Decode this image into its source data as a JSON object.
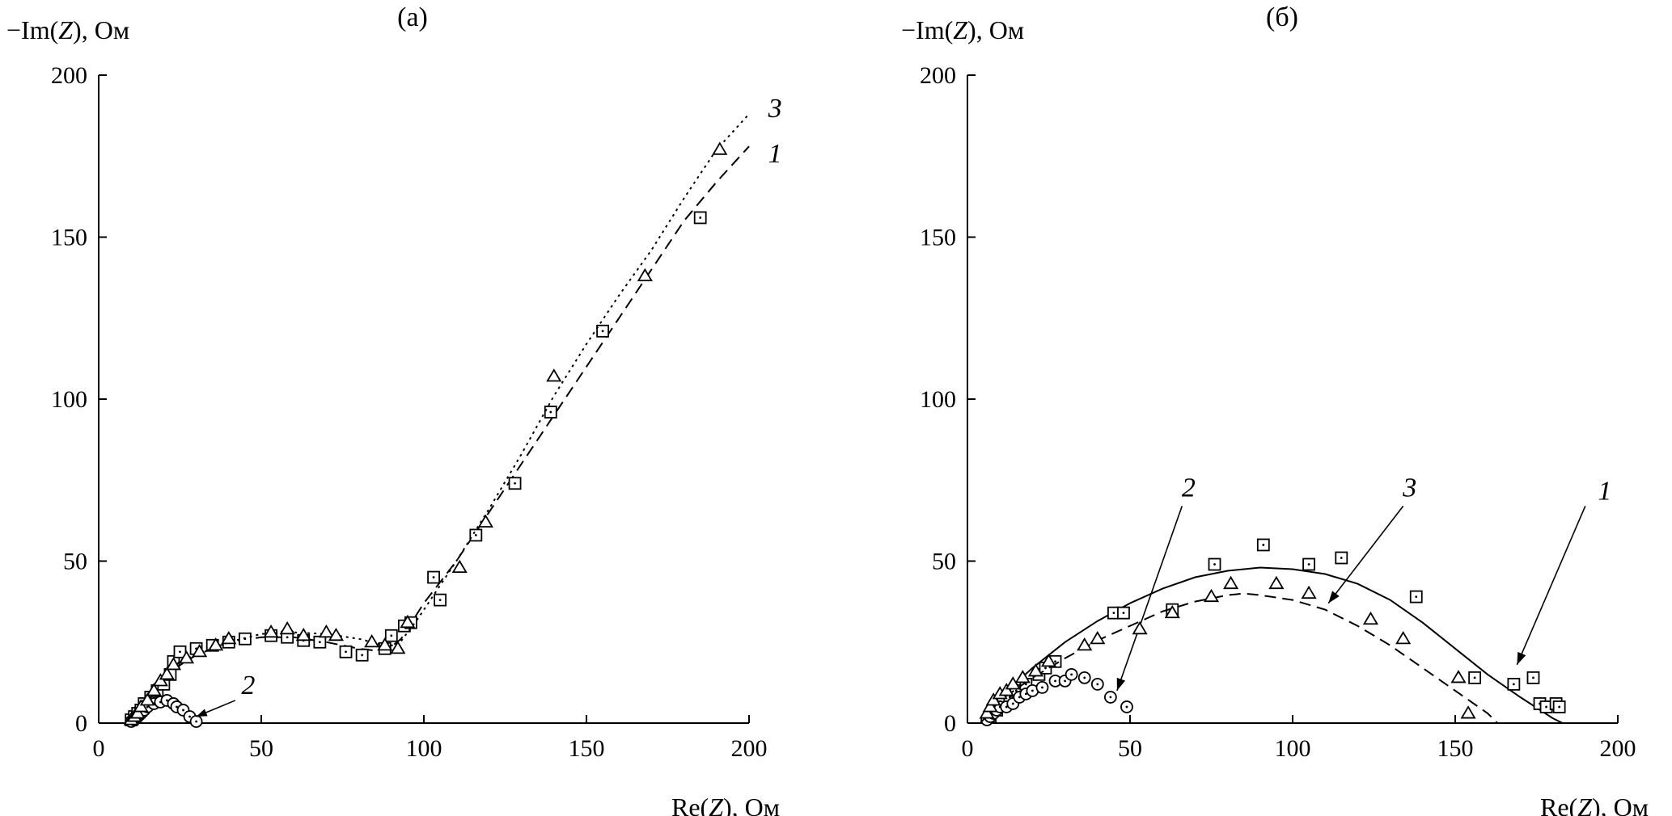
{
  "chart_data": [
    {
      "type": "scatter",
      "panel_label": "(а)",
      "ylabel": "−Im(Z), Ом",
      "xlabel": "Re(Z), Ом",
      "xlim": [
        0,
        200
      ],
      "ylim": [
        0,
        200
      ],
      "xticks": [
        "0",
        "50",
        "100",
        "150",
        "200"
      ],
      "yticks": [
        "0",
        "50",
        "100",
        "150",
        "200"
      ],
      "grid": false,
      "series": [
        {
          "name": "1",
          "marker": "square",
          "line": "dashed",
          "points": [
            [
              10,
              1
            ],
            [
              11,
              2
            ],
            [
              12,
              3
            ],
            [
              13,
              4
            ],
            [
              14,
              6
            ],
            [
              16,
              8
            ],
            [
              18,
              10
            ],
            [
              20,
              12
            ],
            [
              22,
              15
            ],
            [
              23,
              19
            ],
            [
              25,
              22
            ],
            [
              30,
              23
            ],
            [
              35,
              24
            ],
            [
              40,
              25
            ],
            [
              45,
              26
            ],
            [
              53,
              27
            ],
            [
              58,
              26.5
            ],
            [
              63,
              25.5
            ],
            [
              68,
              25
            ],
            [
              76,
              22
            ],
            [
              81,
              21
            ],
            [
              88,
              23
            ],
            [
              90,
              27
            ],
            [
              94,
              30
            ],
            [
              96,
              31
            ],
            [
              103,
              45
            ],
            [
              105,
              38
            ],
            [
              116,
              58
            ],
            [
              128,
              74
            ],
            [
              139,
              96
            ],
            [
              155,
              121
            ],
            [
              185,
              156
            ]
          ],
          "curve": [
            [
              9,
              0
            ],
            [
              12,
              5
            ],
            [
              16,
              10
            ],
            [
              22,
              16
            ],
            [
              30,
              21
            ],
            [
              40,
              25
            ],
            [
              50,
              26.5
            ],
            [
              60,
              26.5
            ],
            [
              70,
              25
            ],
            [
              80,
              23
            ],
            [
              88,
              22
            ],
            [
              93,
              26
            ],
            [
              100,
              37
            ],
            [
              110,
              50
            ],
            [
              120,
              65
            ],
            [
              130,
              80
            ],
            [
              140,
              95
            ],
            [
              150,
              110
            ],
            [
              160,
              125
            ],
            [
              170,
              140
            ],
            [
              180,
              155
            ],
            [
              190,
              167
            ],
            [
              200,
              178
            ]
          ],
          "label_position": [
            208,
            176
          ]
        },
        {
          "name": "2",
          "marker": "circle",
          "points": [
            [
              10,
              0.5
            ],
            [
              11,
              1
            ],
            [
              12,
              2
            ],
            [
              13,
              3
            ],
            [
              14,
              4
            ],
            [
              15,
              5
            ],
            [
              17,
              6
            ],
            [
              19,
              6.5
            ],
            [
              21,
              7
            ],
            [
              23,
              6
            ],
            [
              24,
              5
            ],
            [
              26,
              4
            ],
            [
              28,
              2
            ],
            [
              30,
              0.5
            ]
          ],
          "label_position": [
            46,
            12
          ]
        },
        {
          "name": "3",
          "marker": "triangle",
          "line": "dotted",
          "points": [
            [
              10,
              1
            ],
            [
              11,
              2
            ],
            [
              12,
              3
            ],
            [
              13,
              5
            ],
            [
              15,
              7
            ],
            [
              17,
              10
            ],
            [
              19,
              13
            ],
            [
              21,
              15
            ],
            [
              23,
              18
            ],
            [
              27,
              20
            ],
            [
              31,
              22
            ],
            [
              36,
              24
            ],
            [
              40,
              26
            ],
            [
              53,
              28
            ],
            [
              58,
              29
            ],
            [
              63,
              27
            ],
            [
              70,
              28
            ],
            [
              73,
              27
            ],
            [
              84,
              25
            ],
            [
              88,
              24
            ],
            [
              92,
              23
            ],
            [
              95,
              31
            ],
            [
              111,
              48
            ],
            [
              119,
              62
            ],
            [
              140,
              107
            ],
            [
              168,
              138
            ],
            [
              191,
              177
            ]
          ],
          "curve": [
            [
              9,
              0
            ],
            [
              13,
              6
            ],
            [
              18,
              13
            ],
            [
              25,
              19
            ],
            [
              32,
              22
            ],
            [
              40,
              25
            ],
            [
              50,
              27.5
            ],
            [
              60,
              28
            ],
            [
              70,
              27.5
            ],
            [
              80,
              26
            ],
            [
              88,
              24
            ],
            [
              92,
              24
            ],
            [
              98,
              32
            ],
            [
              110,
              50
            ],
            [
              120,
              66
            ],
            [
              130,
              83
            ],
            [
              140,
              101
            ],
            [
              150,
              117
            ],
            [
              160,
              132
            ],
            [
              170,
              146
            ],
            [
              180,
              162
            ],
            [
              190,
              177
            ],
            [
              200,
              188
            ]
          ],
          "label_position": [
            208,
            190
          ]
        }
      ]
    },
    {
      "type": "scatter",
      "panel_label": "(б)",
      "ylabel": "−Im(Z), Ом",
      "xlabel": "Re(Z), Ом",
      "xlim": [
        0,
        200
      ],
      "ylim": [
        0,
        200
      ],
      "xticks": [
        "0",
        "50",
        "100",
        "150",
        "200"
      ],
      "yticks": [
        "0",
        "50",
        "100",
        "150",
        "200"
      ],
      "grid": false,
      "series": [
        {
          "name": "1",
          "marker": "square",
          "line": "solid",
          "points": [
            [
              7,
              2
            ],
            [
              9,
              4
            ],
            [
              11,
              6
            ],
            [
              13,
              8
            ],
            [
              15,
              10
            ],
            [
              18,
              12
            ],
            [
              22,
              15
            ],
            [
              24,
              17
            ],
            [
              27,
              19
            ],
            [
              45,
              34
            ],
            [
              48,
              34
            ],
            [
              63,
              35
            ],
            [
              76,
              49
            ],
            [
              91,
              55
            ],
            [
              105,
              49
            ],
            [
              115,
              51
            ],
            [
              138,
              39
            ],
            [
              156,
              14
            ],
            [
              168,
              12
            ],
            [
              174,
              14
            ],
            [
              176,
              6
            ],
            [
              178,
              5
            ],
            [
              181,
              6
            ],
            [
              182,
              5
            ]
          ],
          "curve": [
            [
              4,
              0
            ],
            [
              10,
              8
            ],
            [
              20,
              17
            ],
            [
              30,
              25
            ],
            [
              40,
              31.5
            ],
            [
              50,
              37
            ],
            [
              60,
              41.5
            ],
            [
              70,
              45
            ],
            [
              80,
              47
            ],
            [
              90,
              48
            ],
            [
              100,
              47.5
            ],
            [
              110,
              46
            ],
            [
              120,
              43
            ],
            [
              130,
              38
            ],
            [
              140,
              31
            ],
            [
              150,
              23
            ],
            [
              160,
              15
            ],
            [
              170,
              8
            ],
            [
              180,
              1.5
            ],
            [
              183,
              0
            ]
          ],
          "label_position": [
            196,
            72
          ],
          "arrow": {
            "from": [
              190,
              67
            ],
            "to": [
              169,
              18
            ]
          }
        },
        {
          "name": "2",
          "marker": "circle",
          "points": [
            [
              6,
              1
            ],
            [
              7,
              2
            ],
            [
              8,
              3
            ],
            [
              9,
              4
            ],
            [
              10,
              5
            ],
            [
              12,
              5
            ],
            [
              14,
              6
            ],
            [
              16,
              8
            ],
            [
              18,
              9
            ],
            [
              20,
              10
            ],
            [
              23,
              11
            ],
            [
              27,
              13
            ],
            [
              30,
              13
            ],
            [
              32,
              15
            ],
            [
              36,
              14
            ],
            [
              40,
              12
            ],
            [
              44,
              8
            ],
            [
              49,
              5
            ]
          ],
          "label_position": [
            68,
            73
          ],
          "arrow": {
            "from": [
              66,
              67
            ],
            "to": [
              46,
              10
            ]
          }
        },
        {
          "name": "3",
          "marker": "triangle",
          "line": "dashed",
          "points": [
            [
              6,
              3
            ],
            [
              7,
              5
            ],
            [
              8,
              7
            ],
            [
              10,
              9
            ],
            [
              12,
              10
            ],
            [
              14,
              12
            ],
            [
              17,
              14
            ],
            [
              21,
              16
            ],
            [
              25,
              19
            ],
            [
              36,
              24
            ],
            [
              40,
              26
            ],
            [
              53,
              29
            ],
            [
              63,
              34
            ],
            [
              75,
              39
            ],
            [
              81,
              43
            ],
            [
              95,
              43
            ],
            [
              105,
              40
            ],
            [
              124,
              32
            ],
            [
              134,
              26
            ],
            [
              151,
              14
            ],
            [
              154,
              3
            ]
          ],
          "curve": [
            [
              4,
              0
            ],
            [
              10,
              7
            ],
            [
              20,
              14
            ],
            [
              30,
              20
            ],
            [
              40,
              25.5
            ],
            [
              50,
              30
            ],
            [
              60,
              34.5
            ],
            [
              70,
              37.5
            ],
            [
              80,
              39.5
            ],
            [
              85,
              40
            ],
            [
              90,
              39.5
            ],
            [
              100,
              38
            ],
            [
              110,
              35
            ],
            [
              120,
              30
            ],
            [
              130,
              24
            ],
            [
              140,
              17
            ],
            [
              150,
              10
            ],
            [
              160,
              3
            ],
            [
              163,
              0
            ]
          ],
          "label_position": [
            136,
            73
          ],
          "arrow": {
            "from": [
              134,
              67
            ],
            "to": [
              111,
              37
            ]
          }
        }
      ]
    }
  ]
}
